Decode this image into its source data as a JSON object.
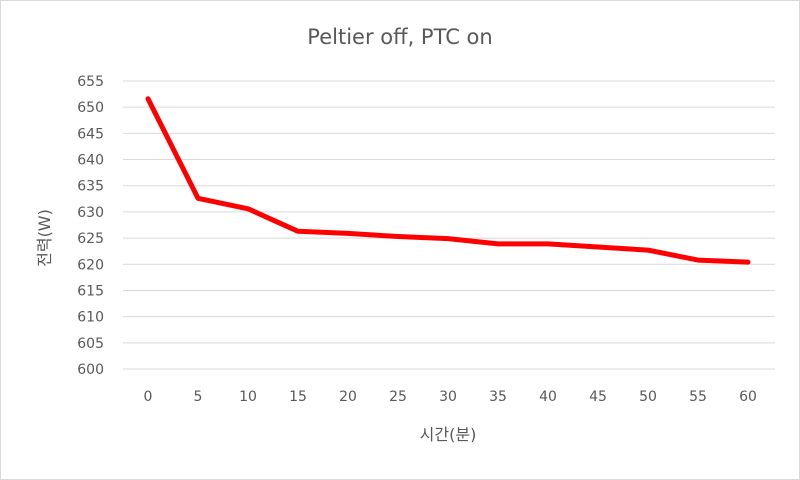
{
  "chart_data": {
    "type": "line",
    "title": "Peltier off, PTC on",
    "xlabel": "시간(분)",
    "ylabel": "전력(W)",
    "categories": [
      "0",
      "5",
      "10",
      "15",
      "20",
      "25",
      "30",
      "35",
      "40",
      "45",
      "50",
      "55",
      "60"
    ],
    "series": [
      {
        "values": [
          651.6,
          632.6,
          630.6,
          626.3,
          625.9,
          625.3,
          624.9,
          623.9,
          623.9,
          623.3,
          622.7,
          620.8,
          620.4
        ]
      }
    ],
    "ylim": [
      600,
      655
    ],
    "yticks": [
      "600",
      "605",
      "610",
      "615",
      "620",
      "625",
      "630",
      "635",
      "640",
      "645",
      "650",
      "655"
    ],
    "grid": true,
    "legend": "none",
    "colors": {
      "series": "#ff0000",
      "grid": "#d9d9d9",
      "text": "#595959",
      "border": "#d9d9d9"
    }
  }
}
